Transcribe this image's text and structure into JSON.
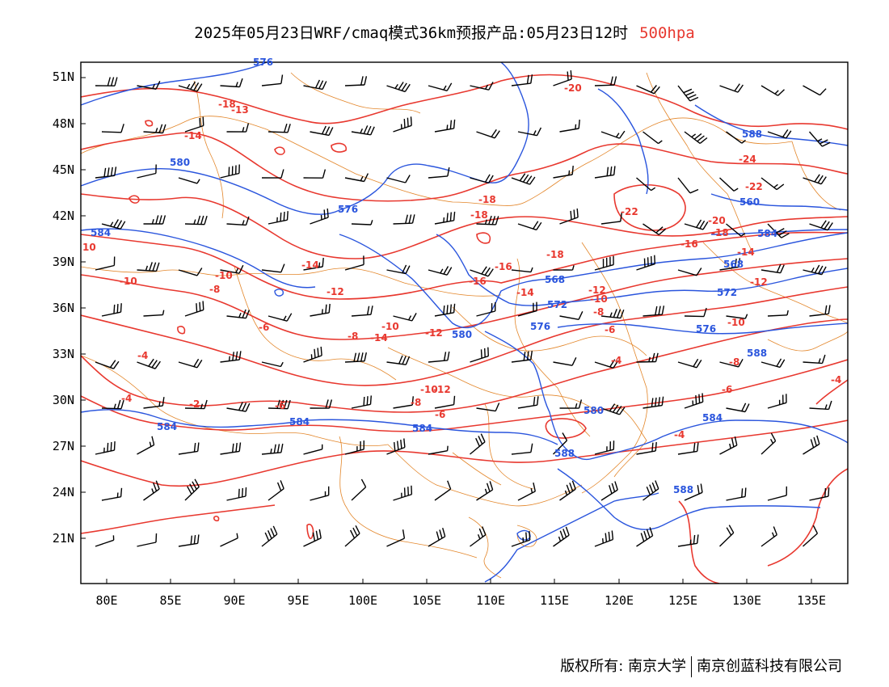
{
  "title": {
    "main": "2025年05月23日WRF/cmaq模式36km预报产品:05月23日12时",
    "level": "500hpa"
  },
  "colors": {
    "temperature": "#e8382f",
    "height": "#2a55dd",
    "boundary": "#e3862a",
    "wind": "#000000",
    "level_text": "#e8382f"
  },
  "axes": {
    "lat_ticks": [
      "51N",
      "48N",
      "45N",
      "42N",
      "39N",
      "36N",
      "33N",
      "30N",
      "27N",
      "24N",
      "21N"
    ],
    "lon_ticks": [
      "80E",
      "85E",
      "90E",
      "95E",
      "100E",
      "105E",
      "110E",
      "115E",
      "120E",
      "125E",
      "130E",
      "135E"
    ]
  },
  "contour_labels": {
    "temperature": [
      "-20",
      "-18",
      "-13",
      "-14",
      "-16",
      "-18",
      "-18",
      "-22",
      "-24",
      "-22",
      "-20",
      "-18",
      "-16",
      "-14",
      "-12",
      "-10",
      "-14",
      "-12",
      "-16",
      "-18",
      "-14",
      "-12",
      "-10",
      "-8",
      "-6",
      "-10",
      "-12",
      "-14",
      "-10",
      "-8",
      "-6",
      "-8",
      "-10",
      "-12",
      "-4",
      "-6",
      "-8",
      "-10",
      "-2",
      "-4",
      "-6",
      "-8",
      "-4",
      "-6",
      "-4",
      "-4",
      "10"
    ],
    "height": [
      "576",
      "580",
      "576",
      "584",
      "584",
      "584",
      "588",
      "568",
      "572",
      "576",
      "580",
      "576",
      "572",
      "568",
      "560",
      "584",
      "580",
      "584",
      "588",
      "588",
      "588",
      "584"
    ]
  },
  "footer": {
    "copyright": "版权所有: 南京大学",
    "company": "南京创蓝科技有限公司"
  }
}
